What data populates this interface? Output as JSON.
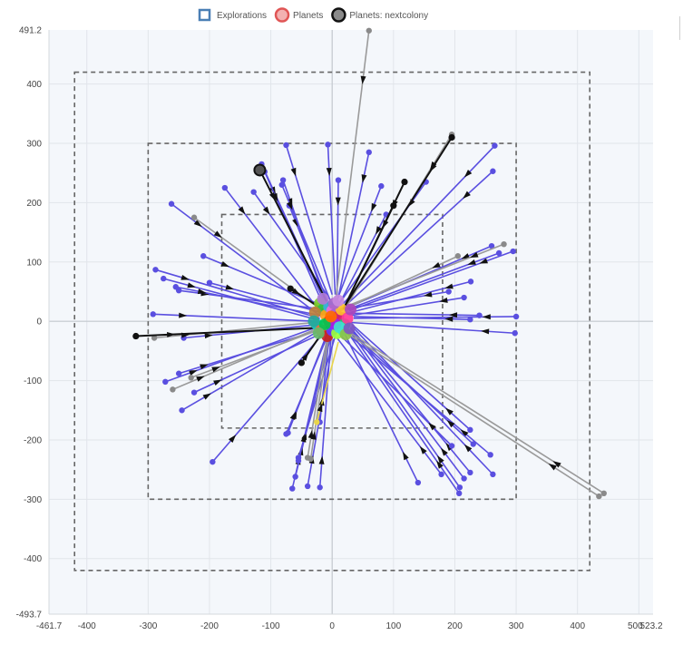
{
  "chart_data": {
    "type": "scatter",
    "title": "",
    "xlabel": "",
    "ylabel": "",
    "xlim": [
      -461.7,
      523.2
    ],
    "ylim": [
      -493.7,
      491.2
    ],
    "x_ticks": [
      -400,
      -300,
      -200,
      -100,
      0,
      100,
      200,
      300,
      400,
      500
    ],
    "y_ticks": [
      -400,
      -300,
      -200,
      -100,
      0,
      100,
      200,
      300,
      400
    ],
    "x_min_label": "-461.7",
    "x_max_label": "523.2",
    "x_500_label": "500",
    "y_min_label": "-493.7",
    "y_max_label": "491.2",
    "grid": true,
    "legend_position": "top-center",
    "legend": [
      {
        "name": "Explorations",
        "color": "#4a7fb5",
        "fill": "#ffffff",
        "shape": "square"
      },
      {
        "name": "Planets",
        "color": "#e05555",
        "fill": "#f3b1b1",
        "shape": "circle"
      },
      {
        "name": "Planets: nextcolony",
        "color": "#111111",
        "fill": "#8a8a8a",
        "shape": "circle"
      }
    ],
    "exploration_boxes": [
      {
        "x": [
          -180,
          180
        ],
        "y": [
          -180,
          180
        ]
      },
      {
        "x": [
          -300,
          300
        ],
        "y": [
          -300,
          300
        ]
      },
      {
        "x": [
          -420,
          420
        ],
        "y": [
          -420,
          420
        ]
      }
    ],
    "exploration_color": "#666666",
    "series": [
      {
        "name": "blue",
        "color": "#5a4fe0",
        "segments": [
          [
            -5,
            15,
            -115,
            265
          ],
          [
            -8,
            12,
            -110,
            252
          ],
          [
            -15,
            10,
            -175,
            225
          ],
          [
            -18,
            8,
            -262,
            198
          ],
          [
            -20,
            5,
            -288,
            87
          ],
          [
            -22,
            2,
            -275,
            72
          ],
          [
            -25,
            0,
            -292,
            12
          ],
          [
            -18,
            -5,
            -242,
            -28
          ],
          [
            -20,
            -8,
            -272,
            -102
          ],
          [
            -15,
            -12,
            -245,
            -150
          ],
          [
            -10,
            -15,
            -195,
            -237
          ],
          [
            -8,
            -20,
            -72,
            -188
          ],
          [
            -6,
            -22,
            -65,
            -282
          ],
          [
            -5,
            -25,
            -60,
            -262
          ],
          [
            -2,
            -28,
            -20,
            -280
          ],
          [
            5,
            -25,
            -55,
            -230
          ],
          [
            20,
            -20,
            140,
            -272
          ],
          [
            25,
            -18,
            207,
            -290
          ],
          [
            28,
            -15,
            208,
            -280
          ],
          [
            30,
            -12,
            215,
            -265
          ],
          [
            30,
            -10,
            225,
            -255
          ],
          [
            32,
            -8,
            262,
            -258
          ],
          [
            32,
            -5,
            225,
            -183
          ],
          [
            30,
            -2,
            298,
            -20
          ],
          [
            35,
            5,
            300,
            8
          ],
          [
            35,
            8,
            225,
            3
          ],
          [
            32,
            10,
            215,
            40
          ],
          [
            30,
            15,
            226,
            67
          ],
          [
            28,
            18,
            295,
            118
          ],
          [
            25,
            20,
            272,
            115
          ],
          [
            22,
            22,
            260,
            127
          ],
          [
            20,
            25,
            262,
            253
          ],
          [
            18,
            30,
            265,
            296
          ],
          [
            15,
            35,
            153,
            235
          ],
          [
            10,
            40,
            60,
            285
          ],
          [
            8,
            42,
            10,
            238
          ],
          [
            5,
            45,
            -7,
            298
          ],
          [
            0,
            45,
            -75,
            297
          ],
          [
            -5,
            40,
            -128,
            218
          ],
          [
            -8,
            35,
            -70,
            195
          ],
          [
            -10,
            30,
            -80,
            238
          ],
          [
            -12,
            25,
            -210,
            110
          ],
          [
            -15,
            20,
            -250,
            52
          ],
          [
            -18,
            15,
            -200,
            65
          ],
          [
            -20,
            10,
            -255,
            58
          ],
          [
            -22,
            -15,
            -250,
            -88
          ],
          [
            -12,
            -18,
            -225,
            -120
          ],
          [
            2,
            -30,
            -40,
            -278
          ],
          [
            8,
            -28,
            178,
            -258
          ],
          [
            12,
            -22,
            195,
            -210
          ],
          [
            18,
            -15,
            258,
            -225
          ],
          [
            22,
            -10,
            230,
            -207
          ],
          [
            -5,
            -18,
            -75,
            -190
          ],
          [
            -2,
            -25,
            -55,
            -235
          ],
          [
            5,
            28,
            80,
            228
          ],
          [
            12,
            30,
            88,
            180
          ],
          [
            -3,
            35,
            -82,
            230
          ],
          [
            0,
            20,
            -20,
            -170
          ],
          [
            4,
            18,
            190,
            50
          ],
          [
            6,
            14,
            240,
            10
          ]
        ]
      },
      {
        "name": "gray",
        "color": "#9a9a9a",
        "segments": [
          [
            15,
            -10,
            443,
            -290
          ],
          [
            12,
            -12,
            435,
            -295
          ],
          [
            5,
            30,
            60,
            490
          ],
          [
            10,
            20,
            280,
            130
          ],
          [
            8,
            15,
            205,
            110
          ],
          [
            -5,
            10,
            -225,
            175
          ],
          [
            -10,
            0,
            -290,
            -28
          ],
          [
            -8,
            -5,
            -260,
            -115
          ],
          [
            -5,
            -8,
            -230,
            -95
          ],
          [
            -6,
            -12,
            -40,
            -230
          ],
          [
            -4,
            -15,
            -35,
            -232
          ],
          [
            20,
            20,
            195,
            315
          ]
        ]
      },
      {
        "name": "black",
        "color": "#111111",
        "segments": [
          [
            20,
            25,
            195,
            310
          ],
          [
            22,
            28,
            118,
            235
          ],
          [
            18,
            20,
            100,
            195
          ],
          [
            -15,
            20,
            -68,
            55
          ],
          [
            -10,
            -10,
            -50,
            -70
          ],
          [
            -5,
            -10,
            -320,
            -25
          ],
          [
            5,
            5,
            -118,
            255
          ]
        ]
      },
      {
        "name": "yellow",
        "color": "#e8d44a",
        "segments": [
          [
            10,
            -35,
            -25,
            -170
          ]
        ]
      }
    ],
    "cluster_points": [
      [
        -20,
        30,
        "#7fd02a"
      ],
      [
        -15,
        20,
        "#2fbf4a"
      ],
      [
        -10,
        10,
        "#ff9f1a"
      ],
      [
        -5,
        25,
        "#3ab0e0"
      ],
      [
        0,
        18,
        "#f06ad8"
      ],
      [
        5,
        12,
        "#9f5fd8"
      ],
      [
        10,
        8,
        "#d81a6a"
      ],
      [
        15,
        20,
        "#ffbf2a"
      ],
      [
        20,
        -5,
        "#1ad06a"
      ],
      [
        -25,
        -5,
        "#1ad0d0"
      ],
      [
        -18,
        -15,
        "#ff5f3a"
      ],
      [
        -8,
        -25,
        "#c62020"
      ],
      [
        0,
        -15,
        "#5f3aff"
      ],
      [
        8,
        -20,
        "#9aff3a"
      ],
      [
        18,
        -15,
        "#3aff9a"
      ],
      [
        25,
        5,
        "#ff3a9a"
      ],
      [
        -28,
        15,
        "#bf7f3a"
      ],
      [
        -5,
        0,
        "#ff1a1a"
      ],
      [
        5,
        -5,
        "#a020f0"
      ],
      [
        12,
        -10,
        "#40e0d0"
      ],
      [
        -12,
        -5,
        "#00c853"
      ],
      [
        -2,
        8,
        "#ff6d00"
      ],
      [
        3,
        30,
        "#aa66cc"
      ],
      [
        -15,
        38,
        "#b07ad8"
      ],
      [
        10,
        35,
        "#c98ae0"
      ],
      [
        -22,
        -20,
        "#66bb6a"
      ],
      [
        22,
        -22,
        "#8bc34a"
      ],
      [
        28,
        -12,
        "#7e57c2"
      ],
      [
        -30,
        0,
        "#26a69a"
      ],
      [
        30,
        20,
        "#ab47bc"
      ]
    ]
  }
}
